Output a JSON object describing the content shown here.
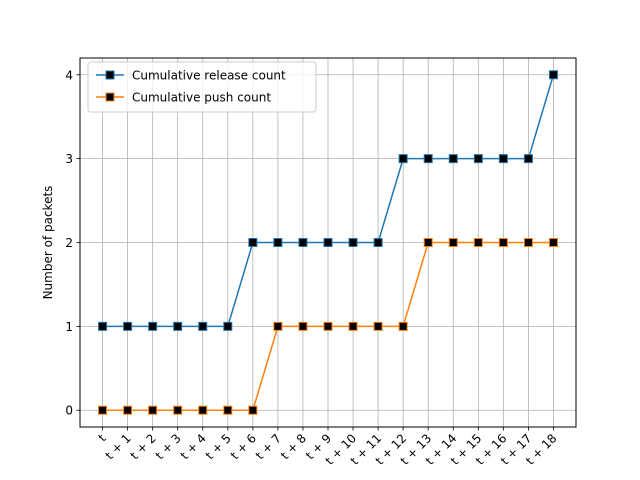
{
  "chart_data": {
    "type": "line",
    "title": "",
    "xlabel": "",
    "ylabel": "Number of packets",
    "categories": [
      "t",
      "t + 1",
      "t + 2",
      "t + 3",
      "t + 4",
      "t + 5",
      "t + 6",
      "t + 7",
      "t + 8",
      "t + 9",
      "t + 10",
      "t + 11",
      "t + 12",
      "t + 13",
      "t + 14",
      "t + 15",
      "t + 16",
      "t + 17",
      "t + 18"
    ],
    "ylim": [
      -0.2,
      4.2
    ],
    "yticks": [
      0,
      1,
      2,
      3,
      4
    ],
    "grid": true,
    "legend_position": "upper-left",
    "x_tick_rotation": "45 degrees",
    "marker": "square",
    "marker_face_color": "#000000",
    "series": [
      {
        "name": "Cumulative release count",
        "color": "#1f77b4",
        "values": [
          1,
          1,
          1,
          1,
          1,
          1,
          2,
          2,
          2,
          2,
          2,
          2,
          3,
          3,
          3,
          3,
          3,
          3,
          4
        ]
      },
      {
        "name": "Cumulative push count",
        "color": "#ff7f0e",
        "values": [
          0,
          0,
          0,
          0,
          0,
          0,
          0,
          1,
          1,
          1,
          1,
          1,
          1,
          2,
          2,
          2,
          2,
          2,
          2
        ]
      }
    ]
  }
}
